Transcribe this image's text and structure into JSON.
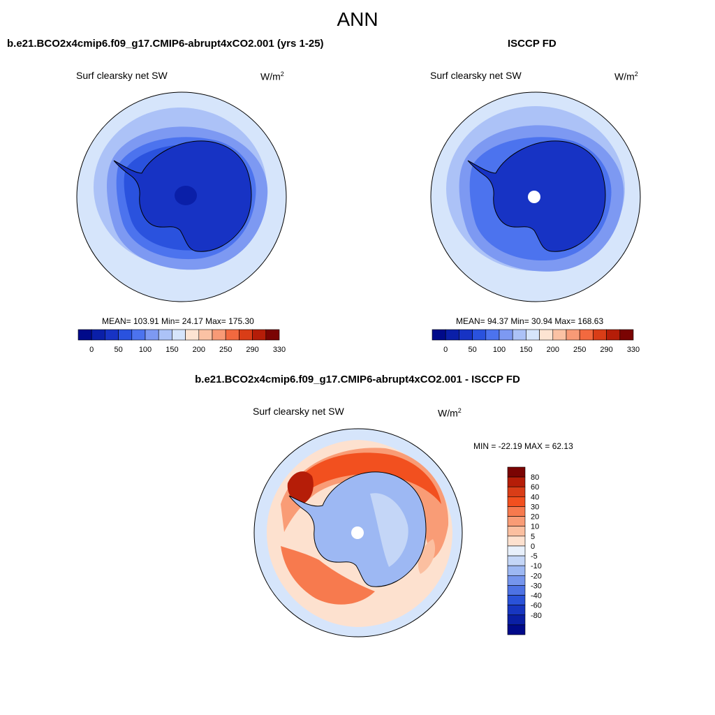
{
  "main_title": "ANN",
  "panels": [
    {
      "title": "b.e21.BCO2x4cmip6.f09_g17.CMIP6-abrupt4xCO2.001 (yrs 1-25)",
      "variable": "Surf clearsky net SW",
      "units": "W/m",
      "units_sup": "2",
      "stats": "MEAN= 103.91  Min=  24.17  Max= 175.30"
    },
    {
      "title": "ISCCP FD",
      "variable": "Surf clearsky net SW",
      "units": "W/m",
      "units_sup": "2",
      "stats": "MEAN=  94.37  Min=  30.94  Max= 168.63"
    },
    {
      "title": "b.e21.BCO2x4cmip6.f09_g17.CMIP6-abrupt4xCO2.001 - ISCCP FD",
      "variable": "Surf clearsky net SW",
      "units": "W/m",
      "units_sup": "2",
      "stats": "MIN = -22.19 MAX =  62.13"
    }
  ],
  "abs_colorbar": {
    "colors": [
      "#000a8a",
      "#0a1fa8",
      "#1733c4",
      "#2a52de",
      "#4c73ee",
      "#7d99f2",
      "#acc2f7",
      "#d6e5fb",
      "#fde4d2",
      "#fbc2a4",
      "#f89a76",
      "#f2693f",
      "#d93d17",
      "#b51d08",
      "#7a0403"
    ],
    "tick_labels": [
      "0",
      "50",
      "100",
      "150",
      "200",
      "250",
      "290",
      "330"
    ]
  },
  "diff_colorbar": {
    "colors": [
      "#7a0403",
      "#b51d08",
      "#d93d17",
      "#f2501f",
      "#f77a4e",
      "#f99c76",
      "#fbbfa0",
      "#fde1cf",
      "#e8f0fb",
      "#c4d6f7",
      "#9db8f3",
      "#7595ed",
      "#4d72e4",
      "#2a52d8",
      "#1736c0",
      "#0a1fa4",
      "#000a8a"
    ],
    "tick_labels": [
      "80",
      "60",
      "40",
      "30",
      "20",
      "10",
      "5",
      "0",
      "-5",
      "-10",
      "-20",
      "-30",
      "-40",
      "-60",
      "-80"
    ]
  }
}
